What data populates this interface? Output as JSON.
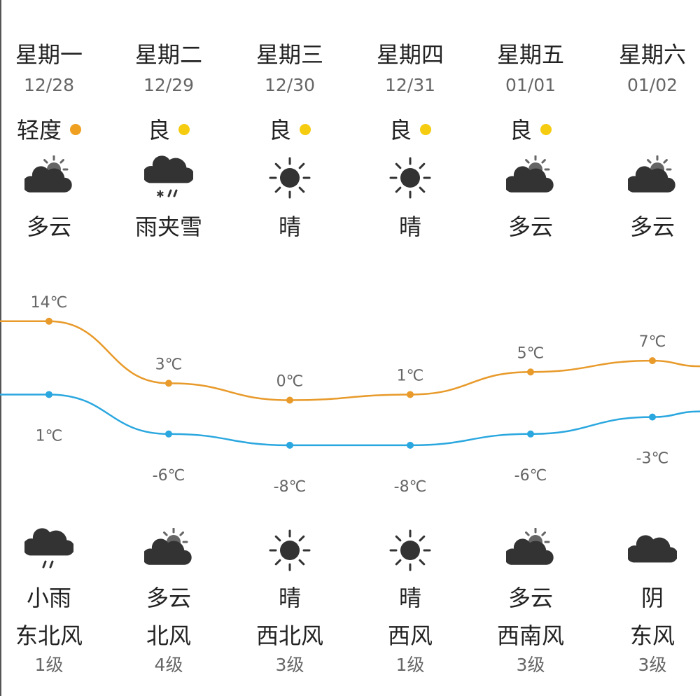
{
  "colors": {
    "high_line": "#e89a2a",
    "low_line": "#2aa7df",
    "aqi_light": "#f0a020",
    "aqi_good": "#f5cc10",
    "icon": "#333333",
    "sun_small": "#666666"
  },
  "days": [
    {
      "weekday": "星期一",
      "date": "12/28",
      "aqi": "轻度",
      "aqi_level": "light",
      "day_icon": "partly-cloudy-icon",
      "day_cond": "多云",
      "night_icon": "light-rain-icon",
      "night_cond": "小雨",
      "wind": "东北风",
      "wind_level": "1级"
    },
    {
      "weekday": "星期二",
      "date": "12/29",
      "aqi": "良",
      "aqi_level": "good",
      "day_icon": "sleet-icon",
      "day_cond": "雨夹雪",
      "night_icon": "partly-cloudy-icon",
      "night_cond": "多云",
      "wind": "北风",
      "wind_level": "4级"
    },
    {
      "weekday": "星期三",
      "date": "12/30",
      "aqi": "良",
      "aqi_level": "good",
      "day_icon": "sunny-icon",
      "day_cond": "晴",
      "night_icon": "sunny-icon",
      "night_cond": "晴",
      "wind": "西北风",
      "wind_level": "3级"
    },
    {
      "weekday": "星期四",
      "date": "12/31",
      "aqi": "良",
      "aqi_level": "good",
      "day_icon": "sunny-icon",
      "day_cond": "晴",
      "night_icon": "sunny-icon",
      "night_cond": "晴",
      "wind": "西风",
      "wind_level": "1级"
    },
    {
      "weekday": "星期五",
      "date": "01/01",
      "aqi": "良",
      "aqi_level": "good",
      "day_icon": "partly-cloudy-icon",
      "day_cond": "多云",
      "night_icon": "partly-cloudy-icon",
      "night_cond": "多云",
      "wind": "西南风",
      "wind_level": "3级"
    },
    {
      "weekday": "星期六",
      "date": "01/02",
      "aqi": "",
      "aqi_level": "none",
      "day_icon": "partly-cloudy-icon",
      "day_cond": "多云",
      "night_icon": "overcast-icon",
      "night_cond": "阴",
      "wind": "东风",
      "wind_level": "3级"
    }
  ],
  "chart_data": {
    "type": "line",
    "categories": [
      "12/28",
      "12/29",
      "12/30",
      "12/31",
      "01/01",
      "01/02"
    ],
    "series": [
      {
        "values": [
          14,
          3,
          0,
          1,
          5,
          7
        ],
        "labels": [
          "14℃",
          "3℃",
          "0℃",
          "1℃",
          "5℃",
          "7℃"
        ]
      },
      {
        "values": [
          1,
          -6,
          -8,
          -8,
          -6,
          -3
        ],
        "labels": [
          "1℃",
          "-6℃",
          "-8℃",
          "-8℃",
          "-6℃",
          "-3℃"
        ]
      }
    ],
    "unit": "℃",
    "grid": false
  }
}
